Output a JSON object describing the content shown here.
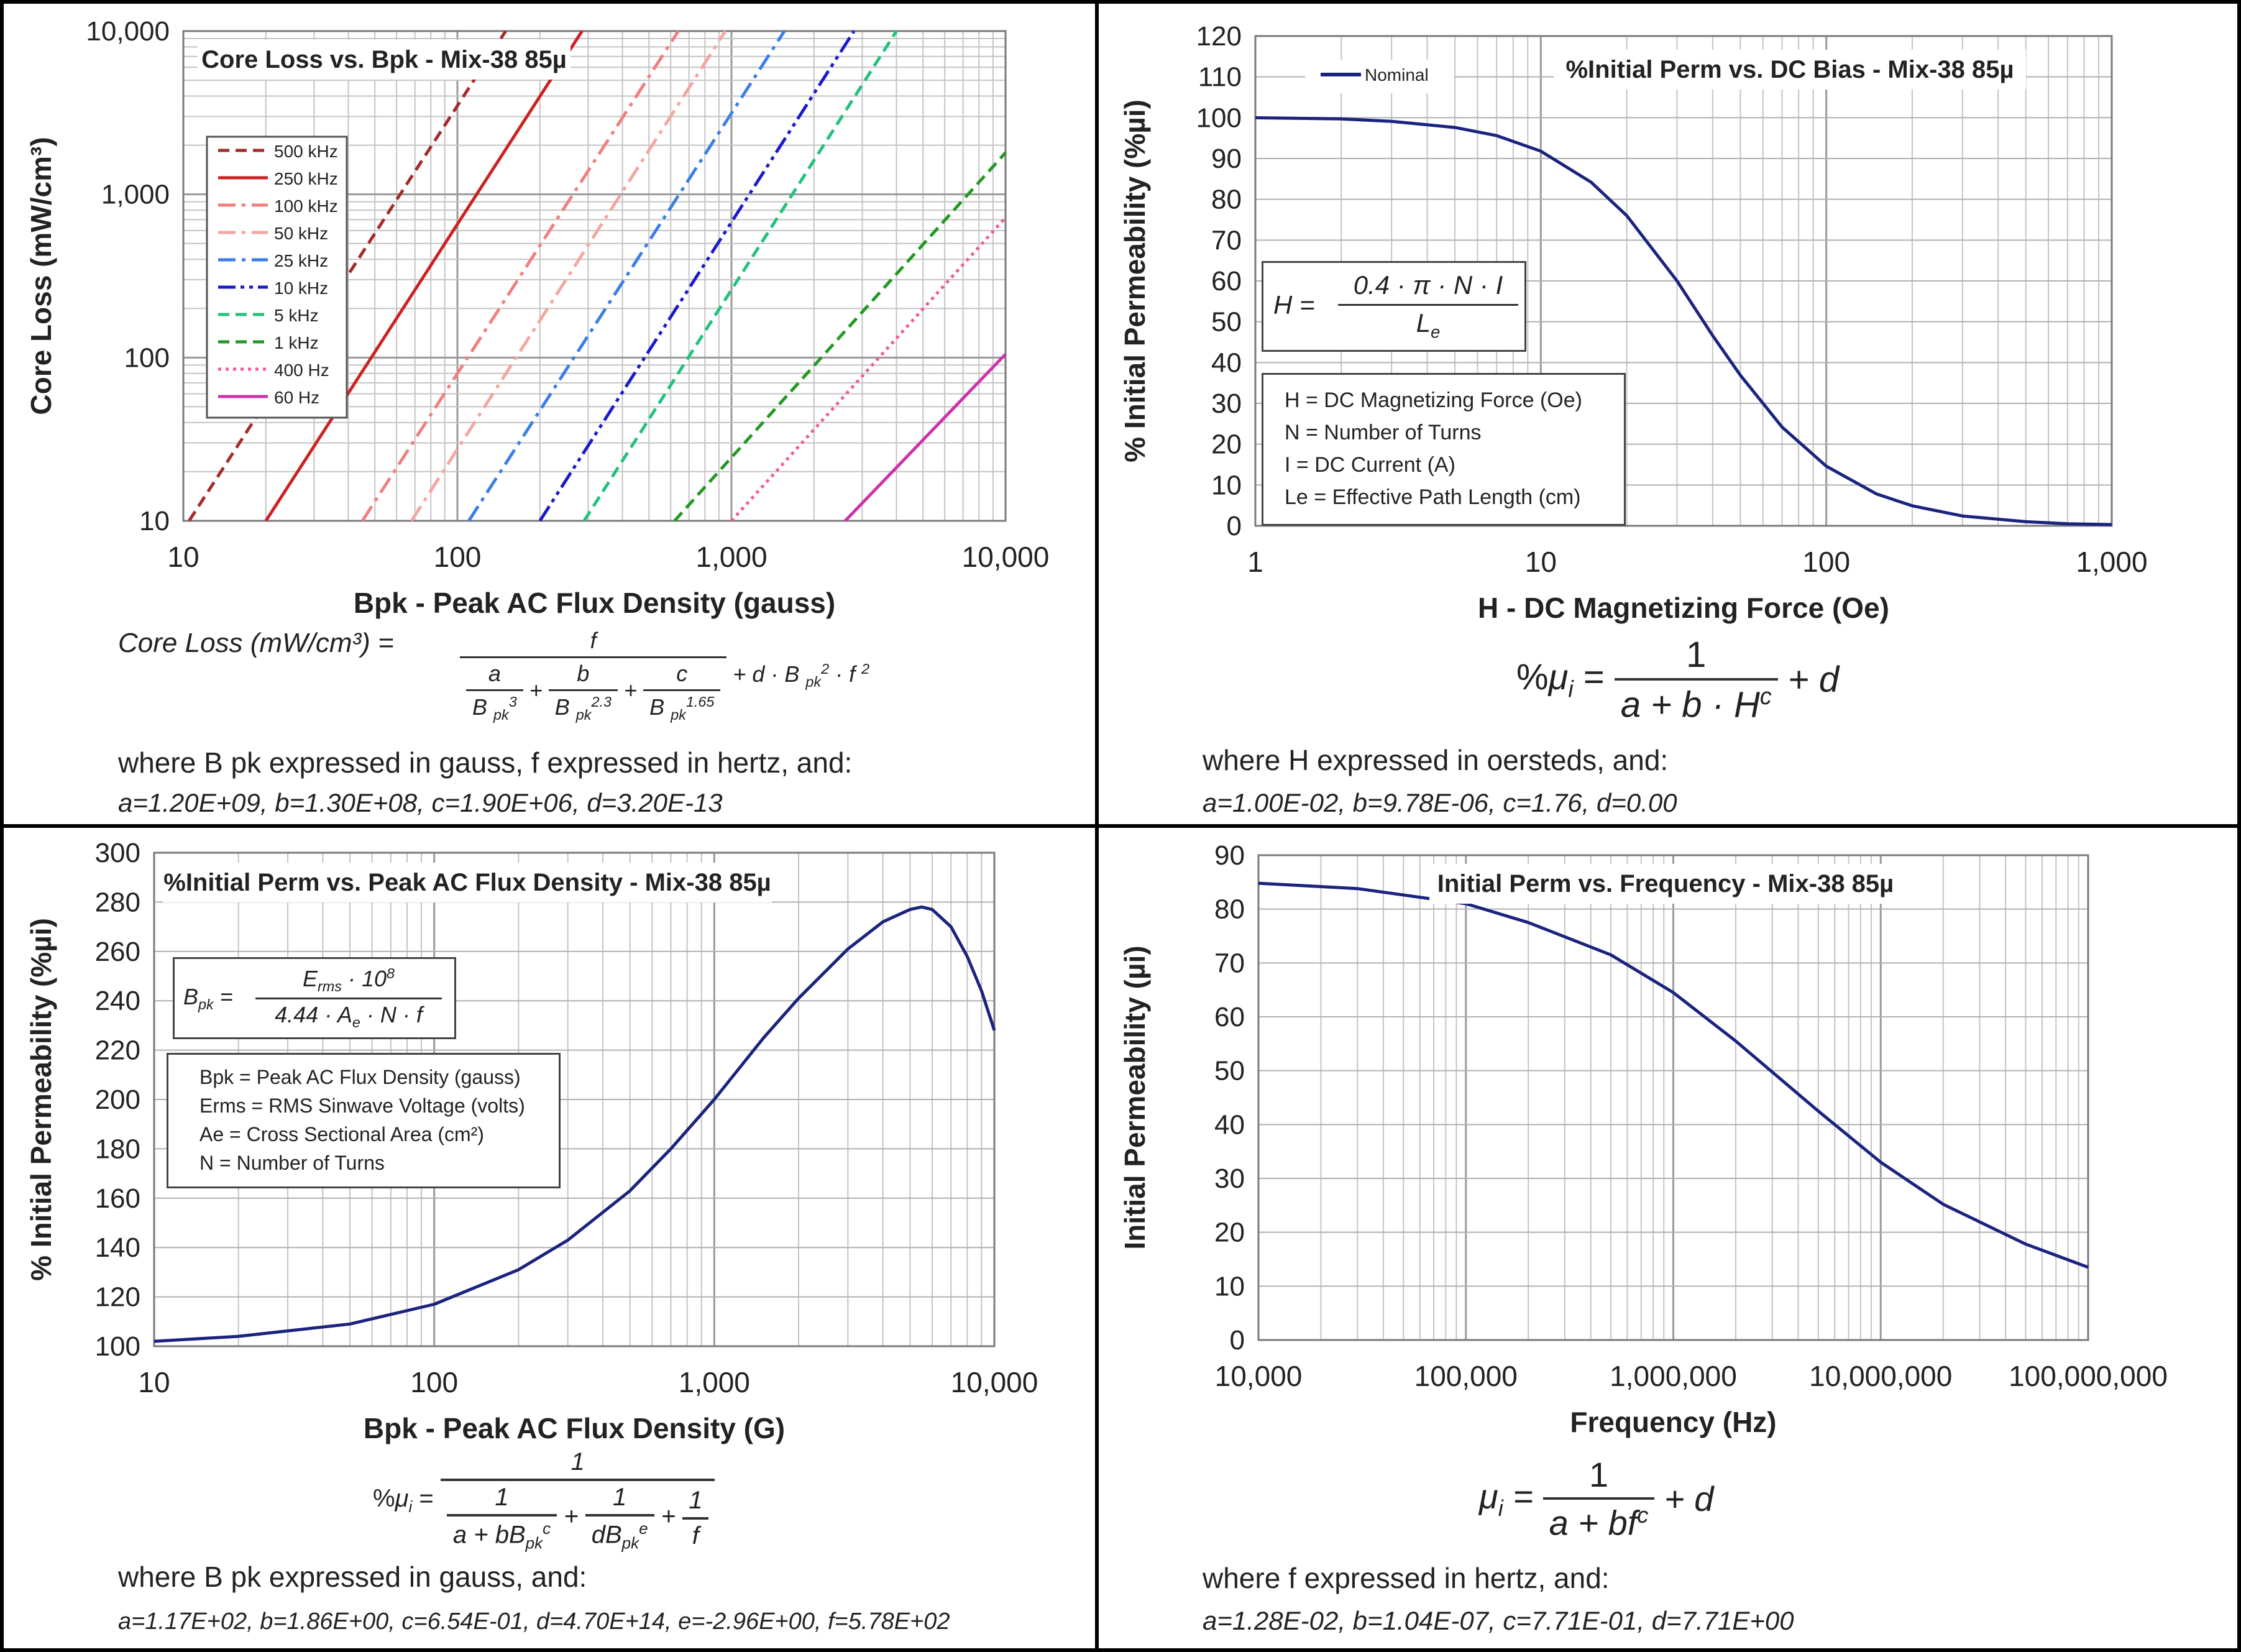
{
  "chart_data": [
    {
      "type": "line",
      "title": "Core Loss vs. Bpk - Mix-38 85µ",
      "xlabel": "Bpk - Peak AC Flux Density (gauss)",
      "ylabel": "Core Loss (mW/cm³)",
      "x_scale": "log",
      "y_scale": "log",
      "xlim": [
        10,
        10000
      ],
      "ylim": [
        10,
        10000
      ],
      "x_ticks": [
        "10",
        "100",
        "1,000",
        "10,000"
      ],
      "y_ticks": [
        "10",
        "100",
        "1,000",
        "10,000"
      ],
      "grid": true,
      "legend_position": "top-left",
      "series": [
        {
          "name": "500 kHz",
          "color": "#a52a2a",
          "dash": "dash",
          "x": [
            10.5,
            150
          ],
          "y": [
            10,
            10000
          ]
        },
        {
          "name": "250 kHz",
          "color": "#cc2222",
          "dash": "solid",
          "x": [
            20,
            285
          ],
          "y": [
            10,
            10000
          ]
        },
        {
          "name": "100 kHz",
          "color": "#f08080",
          "dash": "dashdot",
          "x": [
            45,
            640
          ],
          "y": [
            10,
            10000
          ]
        },
        {
          "name": "50 kHz",
          "color": "#f4a6a0",
          "dash": "dashdot",
          "x": [
            68,
            950
          ],
          "y": [
            10,
            10000
          ]
        },
        {
          "name": "25 kHz",
          "color": "#3a7ee8",
          "dash": "dashdot",
          "x": [
            110,
            1560
          ],
          "y": [
            10,
            10000
          ]
        },
        {
          "name": "10 kHz",
          "color": "#1a1acc",
          "dash": "dashdotdot",
          "x": [
            200,
            2800
          ],
          "y": [
            10,
            10000
          ]
        },
        {
          "name": "5 kHz",
          "color": "#22c27a",
          "dash": "dash",
          "x": [
            290,
            4000
          ],
          "y": [
            10,
            10000
          ]
        },
        {
          "name": "1 kHz",
          "color": "#229922",
          "dash": "dash",
          "x": [
            620,
            10000
          ],
          "y": [
            10,
            1800
          ]
        },
        {
          "name": "400 Hz",
          "color": "#f05aa0",
          "dash": "dot",
          "x": [
            1000,
            10000
          ],
          "y": [
            10,
            720
          ]
        },
        {
          "name": "60 Hz",
          "color": "#cc33aa",
          "dash": "solid",
          "x": [
            2600,
            10000
          ],
          "y": [
            10,
            105
          ]
        }
      ]
    },
    {
      "type": "line",
      "title": "%Initial Perm vs. DC Bias - Mix-38 85µ",
      "xlabel": "H - DC Magnetizing Force (Oe)",
      "ylabel": "% Initial Permeability (%µi)",
      "x_scale": "log",
      "xlim": [
        1,
        1000
      ],
      "ylim": [
        0,
        120
      ],
      "x_ticks": [
        "1",
        "10",
        "100",
        "1,000"
      ],
      "y_ticks": [
        "0",
        "10",
        "20",
        "30",
        "40",
        "50",
        "60",
        "70",
        "80",
        "90",
        "100",
        "110",
        "120"
      ],
      "grid": true,
      "legend_position": "top-left",
      "series": [
        {
          "name": "Nominal",
          "color": "#1a237e",
          "x": [
            1,
            2,
            3,
            5,
            7,
            10,
            15,
            20,
            30,
            40,
            50,
            70,
            100,
            150,
            200,
            300,
            500,
            700,
            1000
          ],
          "y": [
            99.99,
            99.7,
            99.1,
            97.6,
            95.6,
            91.8,
            84.2,
            76.0,
            60.0,
            46.6,
            36.9,
            24.2,
            14.6,
            7.8,
            4.9,
            2.4,
            1.0,
            0.5,
            0.3
          ]
        }
      ]
    },
    {
      "type": "line",
      "title": "%Initial Perm vs. Peak AC Flux Density - Mix-38 85µ",
      "xlabel": "Bpk - Peak AC Flux Density (G)",
      "ylabel": "% Initial Permeability (%µi)",
      "x_scale": "log",
      "xlim": [
        10,
        10000
      ],
      "ylim": [
        100,
        300
      ],
      "x_ticks": [
        "10",
        "100",
        "1,000",
        "10,000"
      ],
      "y_ticks": [
        "100",
        "120",
        "140",
        "160",
        "180",
        "200",
        "220",
        "240",
        "260",
        "280",
        "300"
      ],
      "grid": true,
      "series": [
        {
          "color": "#1a237e",
          "x": [
            10,
            20,
            50,
            100,
            200,
            300,
            500,
            700,
            1000,
            1500,
            2000,
            3000,
            4000,
            5000,
            5500,
            6000,
            7000,
            8000,
            9000,
            10000
          ],
          "y": [
            102,
            104,
            109,
            117,
            131,
            143,
            163,
            180,
            200,
            225,
            241,
            261,
            272,
            277,
            278,
            277,
            270,
            258,
            244,
            228
          ]
        }
      ]
    },
    {
      "type": "line",
      "title": "Initial Perm vs. Frequency - Mix-38 85µ",
      "xlabel": "Frequency (Hz)",
      "ylabel": "Initial Permeability (µi)",
      "x_scale": "log",
      "xlim": [
        10000,
        100000000
      ],
      "ylim": [
        0,
        90
      ],
      "x_ticks": [
        "10,000",
        "100,000",
        "1,000,000",
        "10,000,000",
        "100,000,000"
      ],
      "y_ticks": [
        "0",
        "10",
        "20",
        "30",
        "40",
        "50",
        "60",
        "70",
        "80",
        "90"
      ],
      "grid": true,
      "series": [
        {
          "color": "#1a237e",
          "x": [
            10000,
            30000,
            100000,
            200000,
            500000,
            1000000,
            2000000,
            5000000,
            10000000,
            20000000,
            50000000,
            100000000
          ],
          "y": [
            84.8,
            83.8,
            81.0,
            77.5,
            71.5,
            64.5,
            55.5,
            42.5,
            33.0,
            25.2,
            17.8,
            13.5
          ]
        }
      ]
    }
  ],
  "legend1_labels": [
    "500 kHz",
    "250 kHz",
    "100 kHz",
    "50 kHz",
    "25 kHz",
    "10 kHz",
    "5 kHz",
    "1 kHz",
    "400 Hz",
    "60 Hz"
  ],
  "panel1": {
    "eq_lhs": "Core Loss (mW/cm³)  =",
    "where": "where B pk expressed in gauss, f expressed in hertz, and:",
    "coefs": "a=1.20E+09,   b=1.30E+08,   c=1.90E+06,   d=3.20E-13"
  },
  "panel2": {
    "box_lines": [
      "H = DC Magnetizing Force (Oe)",
      "N = Number of Turns",
      "I = DC Current (A)",
      "Le = Effective Path Length (cm)"
    ],
    "where": "where H  expressed in oersteds, and:",
    "coefs": "a=1.00E-02,   b=9.78E-06,   c=1.76,   d=0.00"
  },
  "panel3": {
    "box_lines": [
      "Bpk = Peak AC Flux Density (gauss)",
      "Erms = RMS Sinwave Voltage (volts)",
      "Ae = Cross Sectional Area (cm²)",
      "N = Number of Turns"
    ],
    "where": "where B pk  expressed in gauss, and:",
    "coefs": "a=1.17E+02, b=1.86E+00, c=6.54E-01, d=4.70E+14, e=-2.96E+00, f=5.78E+02"
  },
  "panel4": {
    "where": "where f  expressed in hertz, and:",
    "coefs": "a=1.28E-02,    b=1.04E-07,   c=7.71E-01,    d=7.71E+00"
  }
}
